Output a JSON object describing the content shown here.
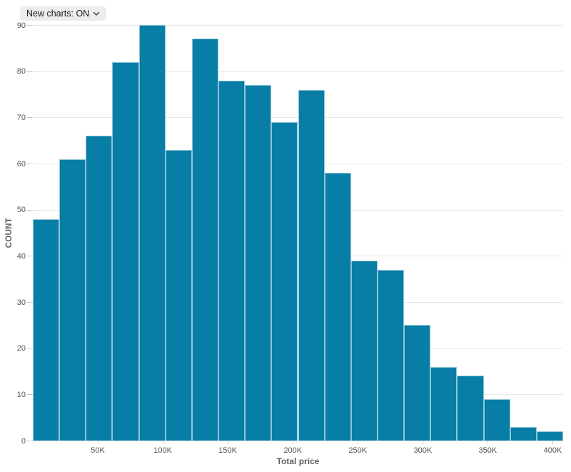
{
  "toolbar": {
    "new_charts_toggle": "New charts: ON"
  },
  "chart_data": {
    "type": "bar",
    "subtype": "histogram",
    "title": "",
    "xlabel": "Total price",
    "ylabel": "COUNT",
    "xlim": [
      0,
      408000
    ],
    "ylim": [
      0,
      90
    ],
    "bin_count": 20,
    "bin_width": 20400,
    "values": [
      48,
      61,
      66,
      82,
      90,
      63,
      87,
      78,
      77,
      69,
      76,
      58,
      39,
      37,
      25,
      16,
      14,
      9,
      3,
      2
    ],
    "x_ticks": [
      {
        "value": 50000,
        "label": "50K"
      },
      {
        "value": 100000,
        "label": "100K"
      },
      {
        "value": 150000,
        "label": "150K"
      },
      {
        "value": 200000,
        "label": "200K"
      },
      {
        "value": 250000,
        "label": "250K"
      },
      {
        "value": 300000,
        "label": "300K"
      },
      {
        "value": 350000,
        "label": "350K"
      },
      {
        "value": 400000,
        "label": "400K"
      }
    ],
    "y_ticks": [
      {
        "value": 0,
        "label": "0"
      },
      {
        "value": 10,
        "label": "10"
      },
      {
        "value": 20,
        "label": "20"
      },
      {
        "value": 30,
        "label": "30"
      },
      {
        "value": 40,
        "label": "40"
      },
      {
        "value": 50,
        "label": "50"
      },
      {
        "value": 60,
        "label": "60"
      },
      {
        "value": 70,
        "label": "70"
      },
      {
        "value": 80,
        "label": "80"
      },
      {
        "value": 90,
        "label": "90"
      }
    ],
    "grid": true,
    "legend": false,
    "colors": {
      "bar_fill": "#087ea6",
      "bar_stroke": "rgba(255,255,255,0.55)",
      "grid": "#e8e8e8",
      "tick_label": "#565656",
      "axis_title": "#5a5e62",
      "chip_bg": "#ececec",
      "chip_text": "#1f1f1f"
    }
  }
}
